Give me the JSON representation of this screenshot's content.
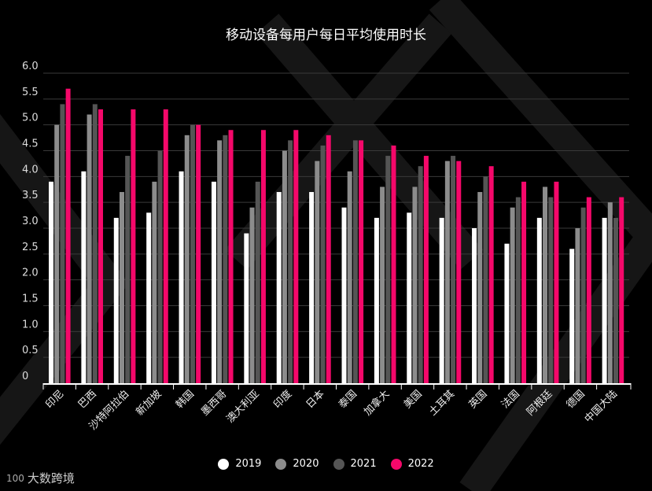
{
  "chart_data": {
    "type": "bar",
    "title": "移动设备每用户每日平均使用时长",
    "xlabel": "",
    "ylabel": "",
    "ylim": [
      0,
      6
    ],
    "yticks": [
      "0",
      "0.5",
      "1.0",
      "1.5",
      "2.0",
      "2.5",
      "3.0",
      "3.5",
      "4.0",
      "4.5",
      "5.0",
      "5.5",
      "6.0"
    ],
    "grid": true,
    "legend_position": "bottom",
    "categories": [
      "印尼",
      "巴西",
      "沙特阿拉伯",
      "新加坡",
      "韩国",
      "墨西哥",
      "澳大利亚",
      "印度",
      "日本",
      "泰国",
      "加拿大",
      "美国",
      "土耳其",
      "英国",
      "法国",
      "阿根廷",
      "德国",
      "中国大陆"
    ],
    "series": [
      {
        "name": "2019",
        "color": "#ffffff",
        "values": [
          3.9,
          4.1,
          3.2,
          3.3,
          4.1,
          3.9,
          2.9,
          3.7,
          3.7,
          3.4,
          3.2,
          3.3,
          3.2,
          3.0,
          2.7,
          3.2,
          2.6,
          3.2
        ]
      },
      {
        "name": "2020",
        "color": "#8c8c8c",
        "values": [
          5.0,
          5.2,
          3.7,
          3.9,
          4.8,
          4.7,
          3.4,
          4.5,
          4.3,
          4.1,
          3.8,
          3.8,
          4.3,
          3.7,
          3.4,
          3.8,
          3.0,
          3.5
        ]
      },
      {
        "name": "2021",
        "color": "#555555",
        "values": [
          5.4,
          5.4,
          4.4,
          4.5,
          5.0,
          4.8,
          3.9,
          4.7,
          4.6,
          4.7,
          4.4,
          4.2,
          4.4,
          4.0,
          3.6,
          3.6,
          3.4,
          3.2
        ]
      },
      {
        "name": "2022",
        "color": "#f5086a",
        "values": [
          5.7,
          5.3,
          5.3,
          5.3,
          5.0,
          4.9,
          4.9,
          4.9,
          4.8,
          4.7,
          4.6,
          4.4,
          4.3,
          4.2,
          3.9,
          3.9,
          3.6,
          3.6
        ]
      }
    ]
  },
  "watermark": {
    "text": "大数跨境",
    "mark": "100"
  }
}
